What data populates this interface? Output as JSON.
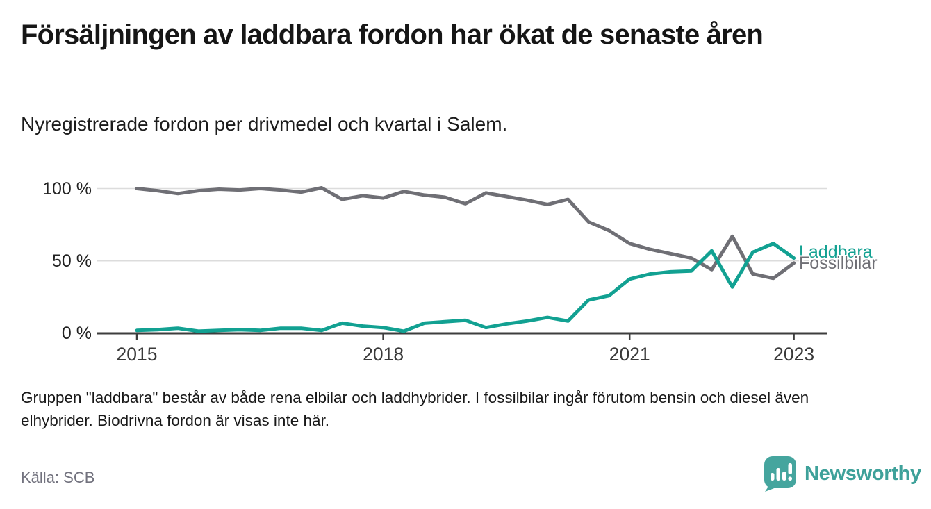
{
  "header": {
    "title": "Försäljningen av laddbara fordon har ökat de senaste åren",
    "subtitle": "Nyregistrerade fordon per drivmedel och kvartal i Salem."
  },
  "chart_data": {
    "type": "line",
    "x_unit": "quarter",
    "x": [
      "2015 Q1",
      "2015 Q2",
      "2015 Q3",
      "2015 Q4",
      "2016 Q1",
      "2016 Q2",
      "2016 Q3",
      "2016 Q4",
      "2017 Q1",
      "2017 Q2",
      "2017 Q3",
      "2017 Q4",
      "2018 Q1",
      "2018 Q2",
      "2018 Q3",
      "2018 Q4",
      "2019 Q1",
      "2019 Q2",
      "2019 Q3",
      "2019 Q4",
      "2020 Q1",
      "2020 Q2",
      "2020 Q3",
      "2020 Q4",
      "2021 Q1",
      "2021 Q2",
      "2021 Q3",
      "2021 Q4",
      "2022 Q1",
      "2022 Q2",
      "2022 Q3",
      "2022 Q4",
      "2023 Q1"
    ],
    "series": [
      {
        "name": "Laddbara",
        "color": "#12a192",
        "values": [
          2,
          2.5,
          3.5,
          1.5,
          2,
          2.5,
          2,
          3.5,
          3.5,
          2,
          7,
          5,
          4,
          1.5,
          7,
          8,
          9,
          4,
          6.5,
          8.5,
          11,
          8.5,
          23,
          26,
          37.5,
          41,
          42.5,
          43,
          57,
          32,
          56,
          62,
          52
        ]
      },
      {
        "name": "Fossilbilar",
        "color": "#6f6f75",
        "values": [
          100,
          98.5,
          96.5,
          98.5,
          99.5,
          99,
          100,
          99,
          97.5,
          100.5,
          92.5,
          95,
          93.5,
          98,
          95.5,
          94,
          89.5,
          97,
          94.5,
          92,
          89,
          92.5,
          77,
          71,
          62,
          58,
          55,
          52,
          44,
          67,
          41,
          38,
          48.5
        ]
      }
    ],
    "ylabel": "",
    "xlabel": "",
    "unit": "%",
    "ylim": [
      0,
      105
    ],
    "xlim": [
      2014.5,
      2023.4
    ],
    "grid": "horizontal",
    "legend_position": "end-of-line",
    "yticks": [
      {
        "value": 100,
        "label": "100 %"
      },
      {
        "value": 50,
        "label": "50 %"
      },
      {
        "value": 0,
        "label": "0 %"
      }
    ],
    "xticks": [
      {
        "value": 2015,
        "label": "2015"
      },
      {
        "value": 2018,
        "label": "2018"
      },
      {
        "value": 2021,
        "label": "2021"
      },
      {
        "value": 2023,
        "label": "2023"
      }
    ]
  },
  "footnote": "Gruppen \"laddbara\" består av både rena elbilar och laddhybrider. I fossilbilar ingår förutom bensin och diesel även elhybrider. Biodrivna fordon är visas inte här.",
  "source": {
    "label": "Källa: SCB"
  },
  "branding": {
    "name": "Newsworthy",
    "icon": "newsworthy-badge-chart-icon",
    "color": "#3ea19a",
    "badge_color": "#45a59e"
  },
  "style": {
    "gridline_color": "#dcdcdc",
    "axis_color": "#3d3d3d",
    "tick_label_color": "#3a3a3a"
  }
}
